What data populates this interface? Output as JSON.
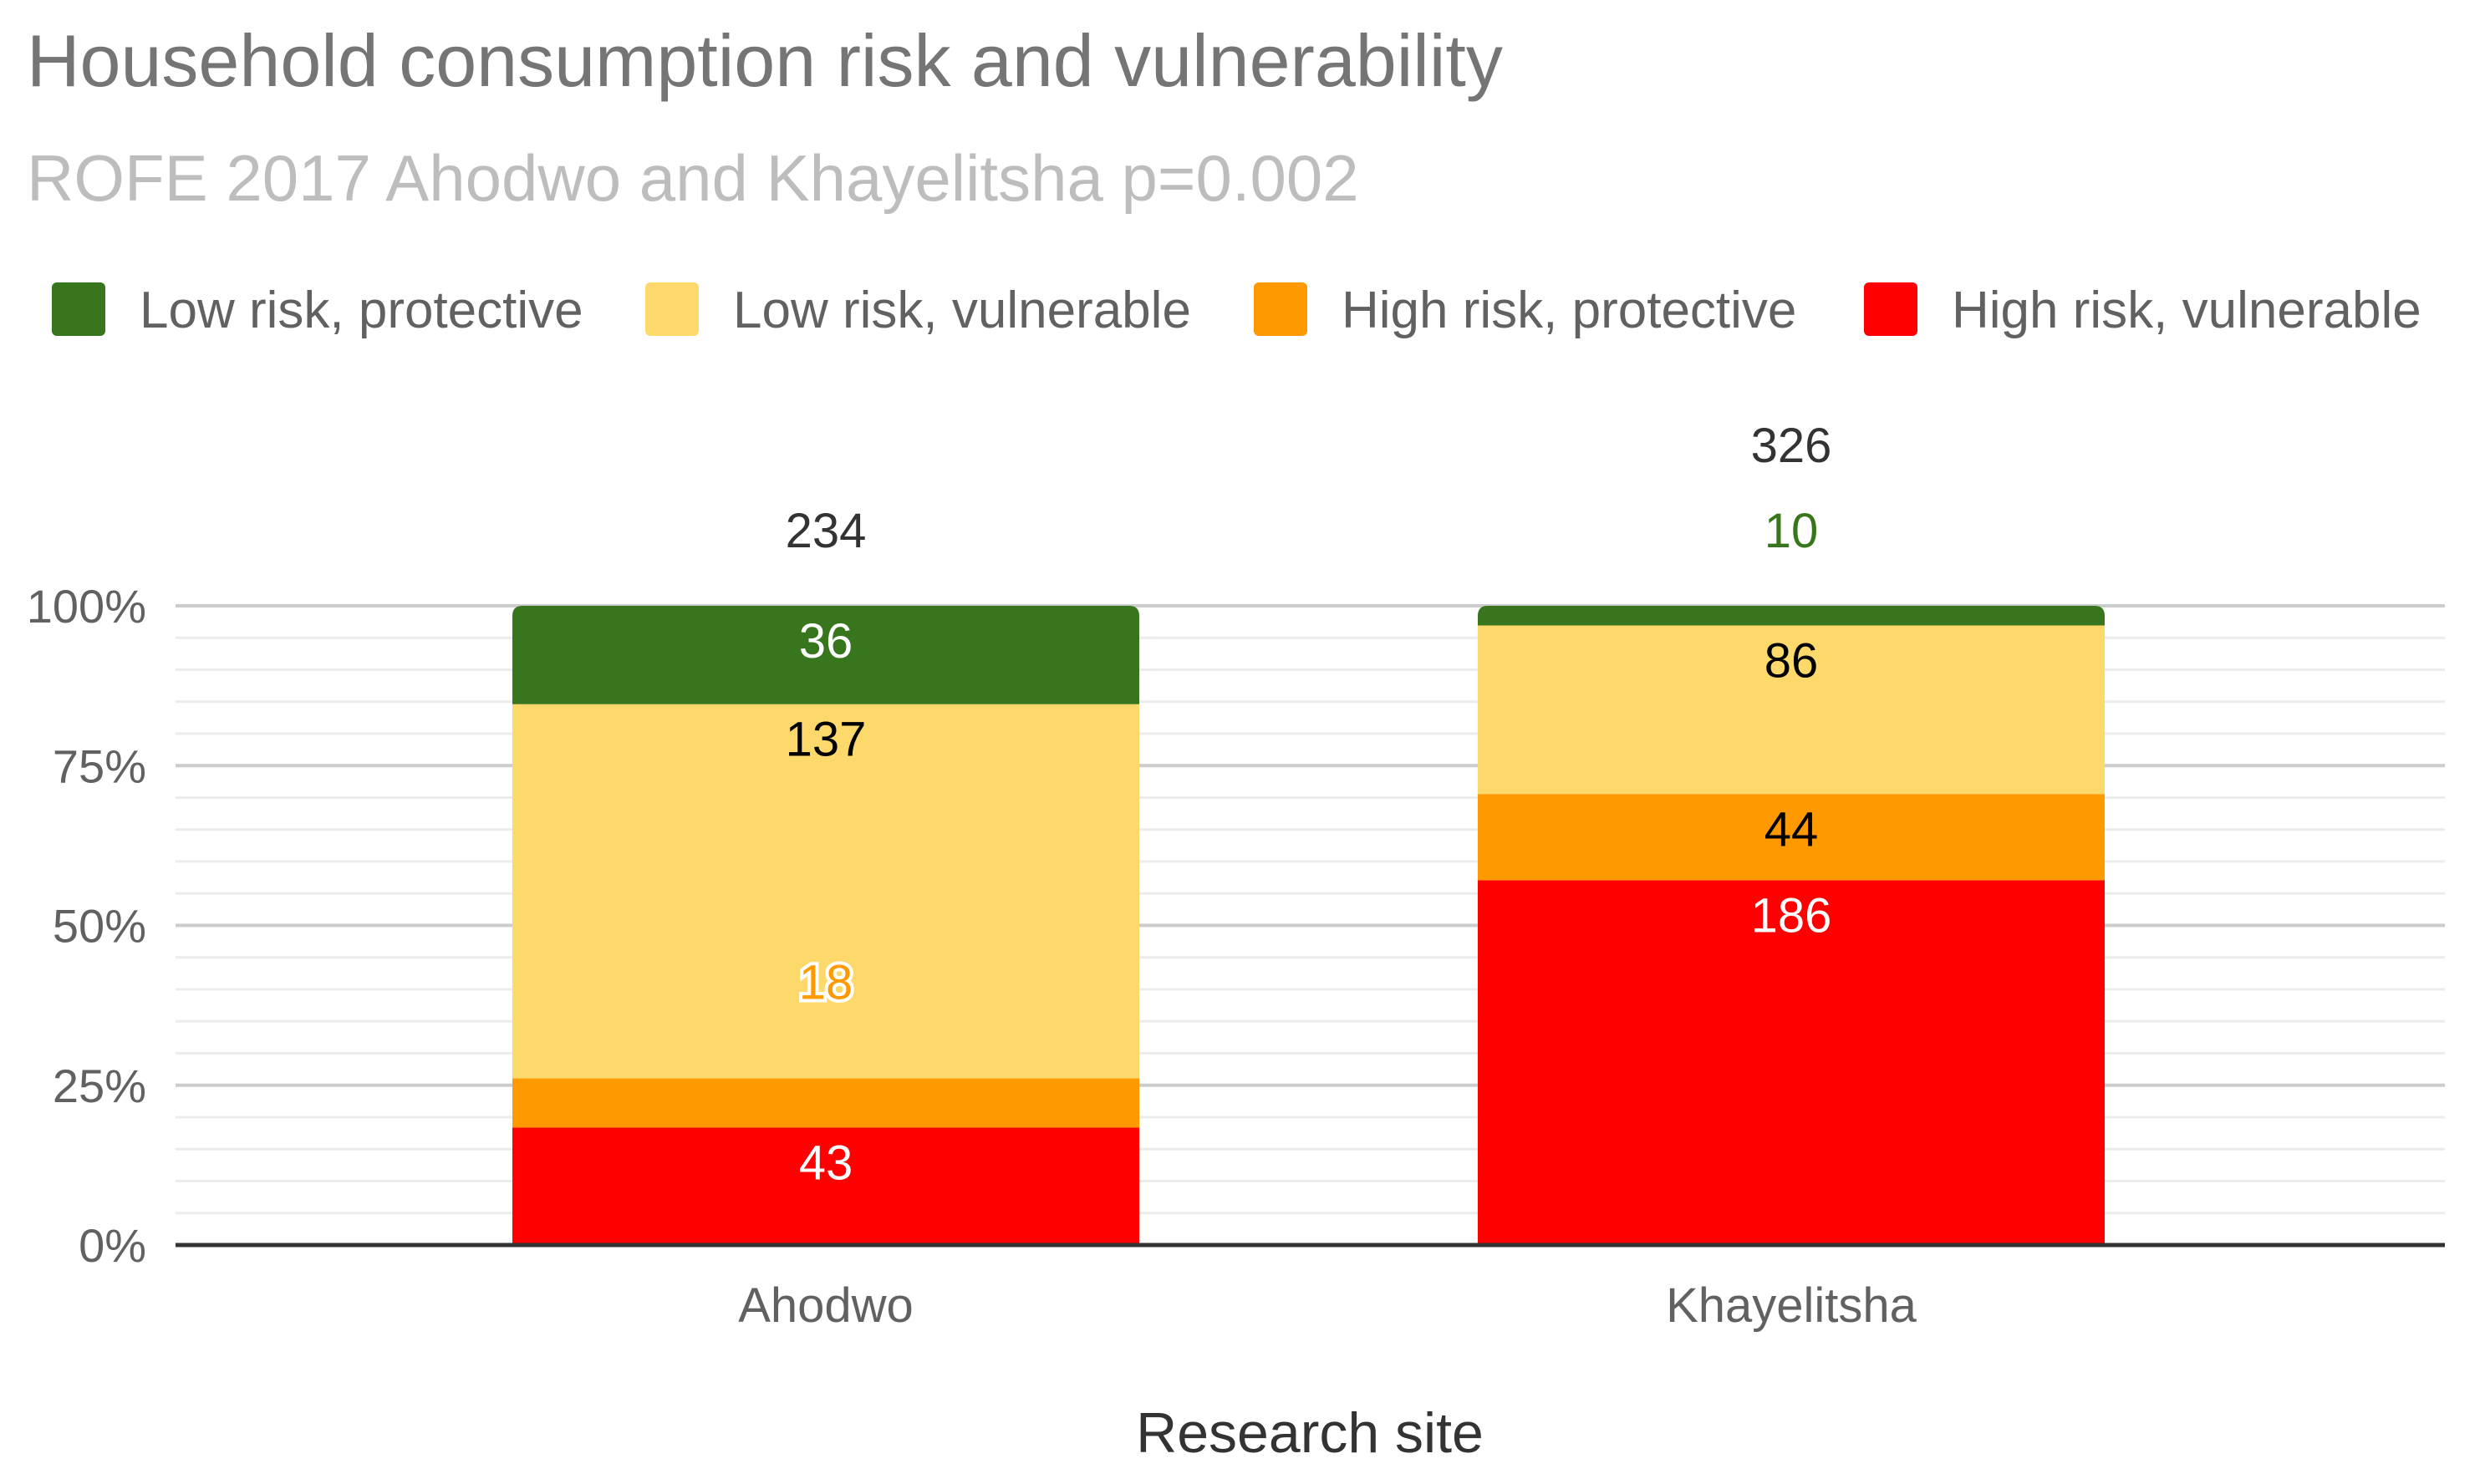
{
  "chart_data": {
    "type": "bar",
    "stacked": true,
    "normalized": true,
    "title": "Household consumption risk and vulnerability",
    "subtitle": "ROFE 2017 Ahodwo and Khayelitsha p=0.002",
    "xlabel": "Research site",
    "ylabel": "",
    "ylim": [
      0,
      100
    ],
    "y_ticks": [
      "0%",
      "25%",
      "50%",
      "75%",
      "100%"
    ],
    "grid": true,
    "legend_position": "top",
    "categories": [
      "Ahodwo",
      "Khayelitsha"
    ],
    "totals": [
      "234",
      "326"
    ],
    "series": [
      {
        "name": "High risk, vulnerable",
        "color": "#ff0000",
        "label_color": "#ffffff",
        "values": [
          43,
          186
        ],
        "labels": [
          "43",
          "186"
        ]
      },
      {
        "name": "High risk, protective",
        "color": "#ff9900",
        "label_color": "#000000",
        "values": [
          18,
          44
        ],
        "labels": [
          "18",
          "44"
        ]
      },
      {
        "name": "Low risk, vulnerable",
        "color": "#fdd86a",
        "label_color": "#000000",
        "values": [
          137,
          86
        ],
        "labels": [
          "137",
          "86"
        ]
      },
      {
        "name": "Low risk, protective",
        "color": "#38761d",
        "label_color": "#ffffff",
        "values": [
          36,
          10
        ],
        "labels": [
          "36",
          "10"
        ]
      }
    ]
  }
}
